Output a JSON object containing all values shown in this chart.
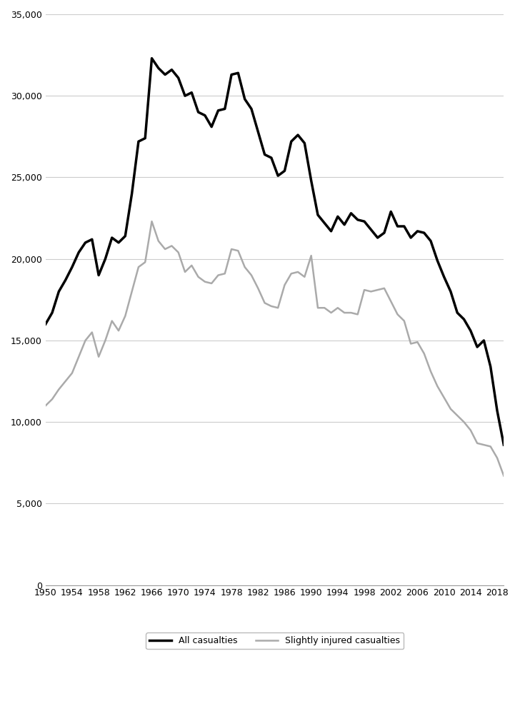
{
  "years": [
    1950,
    1951,
    1952,
    1953,
    1954,
    1955,
    1956,
    1957,
    1958,
    1959,
    1960,
    1961,
    1962,
    1963,
    1964,
    1965,
    1966,
    1967,
    1968,
    1969,
    1970,
    1971,
    1972,
    1973,
    1974,
    1975,
    1976,
    1977,
    1978,
    1979,
    1980,
    1981,
    1982,
    1983,
    1984,
    1985,
    1986,
    1987,
    1988,
    1989,
    1990,
    1991,
    1992,
    1993,
    1994,
    1995,
    1996,
    1997,
    1998,
    1999,
    2000,
    2001,
    2002,
    2003,
    2004,
    2005,
    2006,
    2007,
    2008,
    2009,
    2010,
    2011,
    2012,
    2013,
    2014,
    2015,
    2016,
    2017,
    2018,
    2019
  ],
  "all_casualties": [
    16000,
    16700,
    18000,
    18700,
    19500,
    20400,
    21000,
    21200,
    19000,
    20000,
    21300,
    21000,
    21400,
    24000,
    27200,
    27400,
    32300,
    31700,
    31300,
    31600,
    31100,
    30000,
    30200,
    29000,
    28800,
    28100,
    29100,
    29200,
    31300,
    31400,
    29800,
    29200,
    27800,
    26400,
    26200,
    25100,
    25400,
    27200,
    27600,
    27100,
    24800,
    22700,
    22200,
    21700,
    22600,
    22100,
    22800,
    22400,
    22300,
    21800,
    21300,
    21600,
    22900,
    22000,
    22000,
    21300,
    21700,
    21600,
    21100,
    19900,
    18900,
    18000,
    16700,
    16300,
    15600,
    14600,
    15000,
    13400,
    10700,
    8600
  ],
  "slightly_injured": [
    11000,
    11400,
    12000,
    12500,
    13000,
    14000,
    15000,
    15500,
    14000,
    15000,
    16200,
    15600,
    16500,
    18000,
    19500,
    19800,
    22300,
    21100,
    20600,
    20800,
    20400,
    19200,
    19600,
    18900,
    18600,
    18500,
    19000,
    19100,
    20600,
    20500,
    19500,
    19000,
    18200,
    17300,
    17100,
    17000,
    18400,
    19100,
    19200,
    18900,
    20200,
    17000,
    17000,
    16700,
    17000,
    16700,
    16700,
    16600,
    18100,
    18000,
    18100,
    18200,
    17400,
    16600,
    16200,
    14800,
    14900,
    14200,
    13100,
    12200,
    11500,
    10800,
    10400,
    10000,
    9500,
    8700,
    8600,
    8500,
    7800,
    6700
  ],
  "all_color": "#000000",
  "slightly_color": "#aaaaaa",
  "all_linewidth": 2.5,
  "slightly_linewidth": 1.8,
  "ylim": [
    0,
    35000
  ],
  "yticks": [
    0,
    5000,
    10000,
    15000,
    20000,
    25000,
    30000,
    35000
  ],
  "xticks": [
    1950,
    1954,
    1958,
    1962,
    1966,
    1970,
    1974,
    1978,
    1982,
    1986,
    1990,
    1994,
    1998,
    2002,
    2006,
    2010,
    2014,
    2018
  ],
  "grid_color": "#cccccc",
  "legend_label_all": "All casualties",
  "legend_label_slightly": "Slightly injured casualties",
  "background_color": "#ffffff"
}
